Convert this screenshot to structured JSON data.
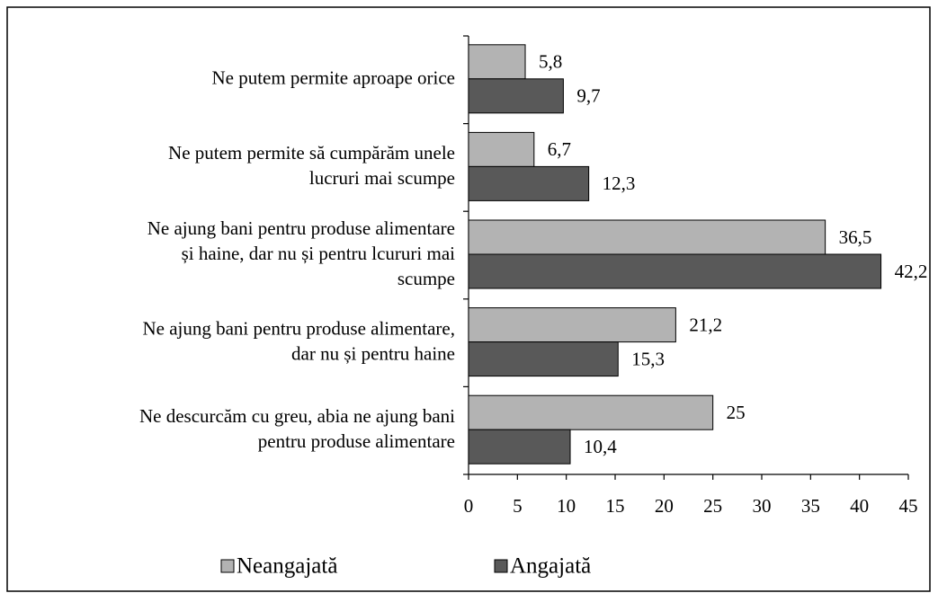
{
  "chart_data": {
    "type": "bar",
    "orientation": "horizontal",
    "categories": [
      [
        "Ne putem permite aproape orice"
      ],
      [
        "Ne putem permite să cumpărăm unele",
        "lucruri mai scumpe"
      ],
      [
        "Ne ajung bani pentru produse alimentare",
        "și haine, dar nu și pentru lcururi mai",
        "scumpe"
      ],
      [
        "Ne ajung bani pentru produse alimentare,",
        "dar nu și pentru haine"
      ],
      [
        "Ne descurcăm cu greu, abia ne ajung bani",
        "pentru produse alimentare"
      ]
    ],
    "series": [
      {
        "name": "Neangajată",
        "color": "#b3b3b3",
        "values": [
          5.8,
          6.7,
          36.5,
          21.2,
          25
        ],
        "value_labels": [
          "5,8",
          "6,7",
          "36,5",
          "21,2",
          "25"
        ]
      },
      {
        "name": "Angajată",
        "color": "#595959",
        "values": [
          9.7,
          12.3,
          42.2,
          15.3,
          10.4
        ],
        "value_labels": [
          "9,7",
          "12,3",
          "42,2",
          "15,3",
          "10,4"
        ]
      }
    ],
    "xlim": [
      0,
      45
    ],
    "xticks": [
      0,
      5,
      10,
      15,
      20,
      25,
      30,
      35,
      40,
      45
    ],
    "legend": "bottom"
  }
}
